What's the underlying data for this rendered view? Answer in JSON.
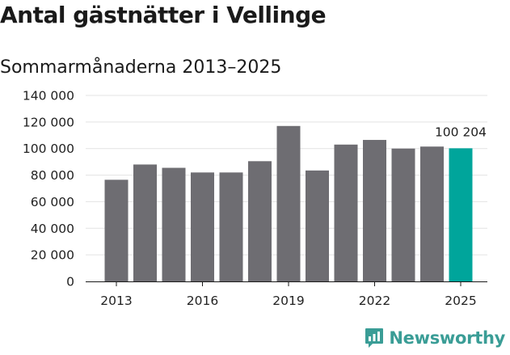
{
  "colors": {
    "bar": "#6e6d72",
    "highlight": "#00a59b",
    "grid": "#e3e3e3",
    "axis": "#1a1a1a",
    "brand": "#3a9d96"
  },
  "brand": {
    "name": "Newsworthy",
    "icon": "newsworthy-logo-icon"
  },
  "chart_data": {
    "type": "bar",
    "title": "Antal gästnätter i Vellinge",
    "subtitle": "Sommarmånaderna 2013–2025",
    "xlabel": "",
    "ylabel": "",
    "categories": [
      "2013",
      "2014",
      "2015",
      "2016",
      "2017",
      "2018",
      "2019",
      "2020",
      "2021",
      "2022",
      "2023",
      "2024",
      "2025"
    ],
    "values": [
      76500,
      88000,
      85500,
      82000,
      82000,
      90500,
      117000,
      83500,
      103000,
      106500,
      100000,
      101500,
      100204
    ],
    "highlight_index": 12,
    "x_tick_labels": [
      "2013",
      "2016",
      "2019",
      "2022",
      "2025"
    ],
    "y_ticks": [
      {
        "value": 0,
        "label": "0"
      },
      {
        "value": 20000,
        "label": "20 000"
      },
      {
        "value": 40000,
        "label": "40 000"
      },
      {
        "value": 60000,
        "label": "60 000"
      },
      {
        "value": 80000,
        "label": "80 000"
      },
      {
        "value": 100000,
        "label": "100 000"
      },
      {
        "value": 120000,
        "label": "120 000"
      },
      {
        "value": 140000,
        "label": "140 000"
      }
    ],
    "ylim": [
      0,
      140000
    ],
    "grid": true,
    "annotation": {
      "index": 12,
      "label": "100 204"
    }
  }
}
